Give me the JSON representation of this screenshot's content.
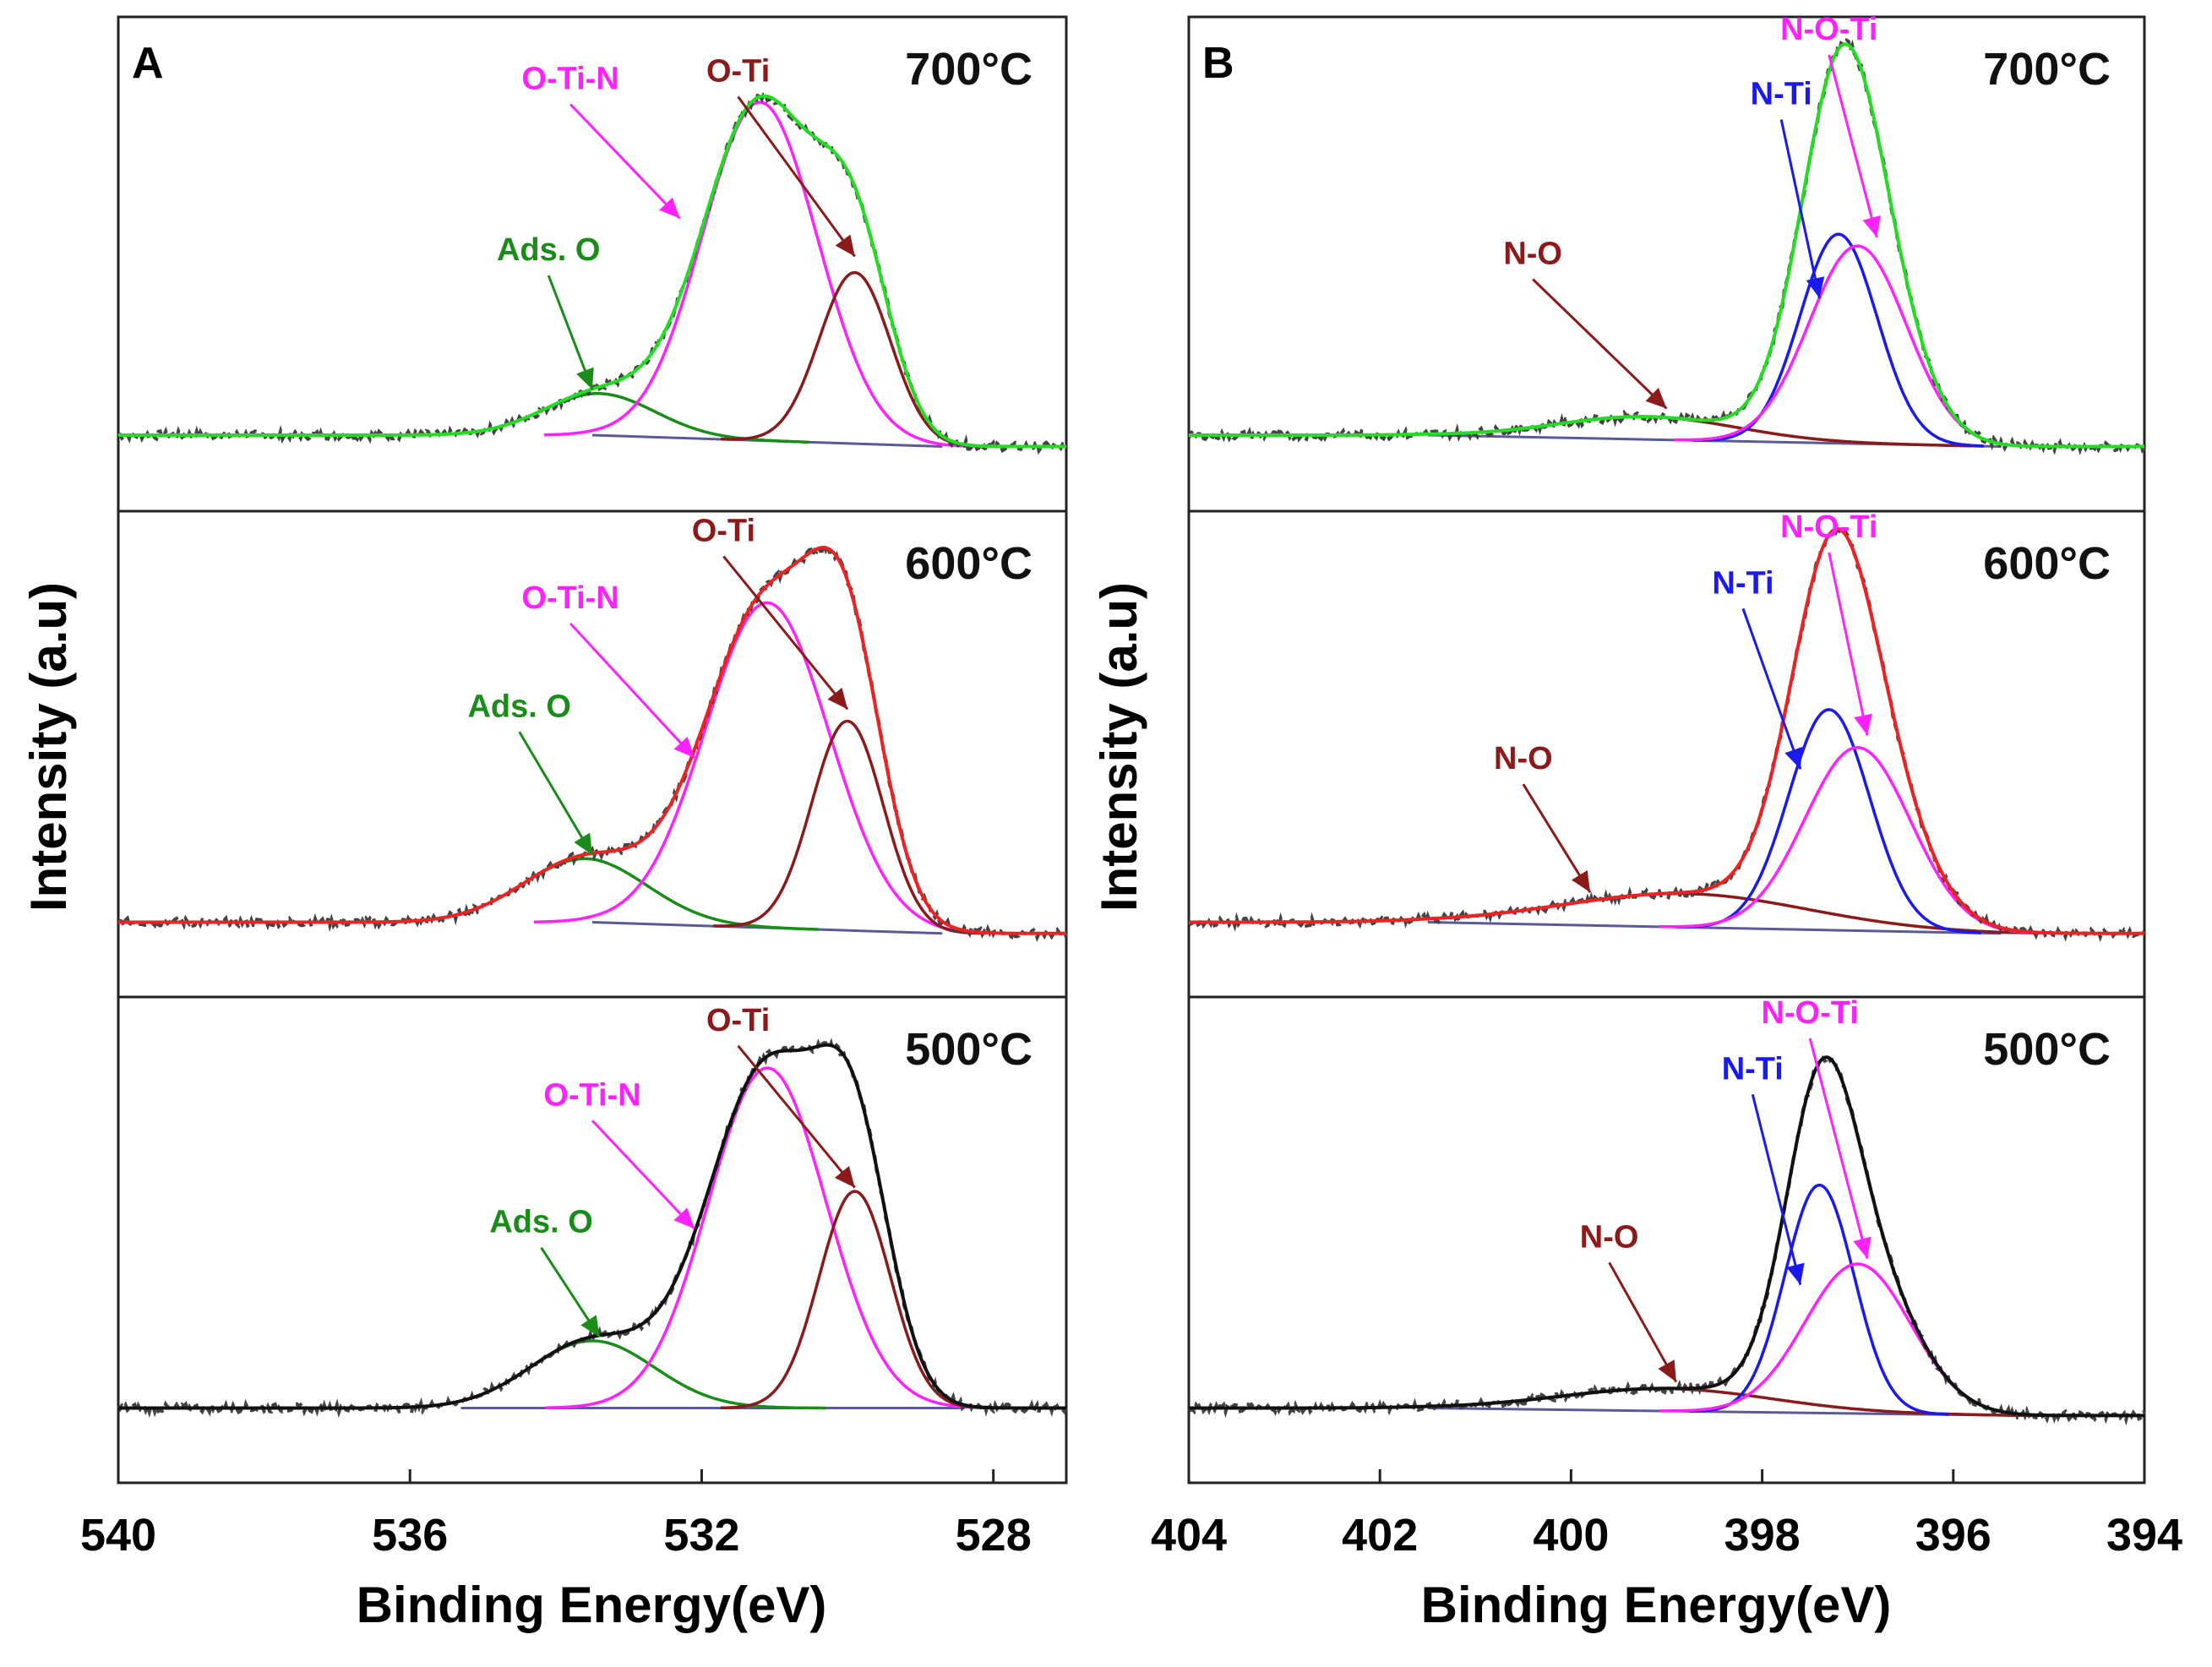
{
  "figure": {
    "xlabel": "Binding Energy(eV)",
    "ylabel": "Intensity (a.u)"
  },
  "chart_data": [
    {
      "panel": "A",
      "type": "line",
      "xlabel": "Binding Energy(eV)",
      "ylabel": "Intensity (a.u)",
      "xlim": [
        540,
        527
      ],
      "x_reversed": true,
      "xticks": [
        540,
        536,
        532,
        528
      ],
      "xtick_labels": [
        "540",
        "536",
        "532",
        "528"
      ],
      "series_legend": {
        "measured": "dotted dark gray",
        "background": "slate"
      },
      "subplots": [
        {
          "temp_label": "700°C",
          "envelope_color": "#22dd22",
          "ylim": [
            -0.2,
            1.1
          ],
          "baseline": {
            "left_x": 533.5,
            "right_x": 528.7,
            "left_y": 0.0,
            "right_y": -0.03
          },
          "components": [
            {
              "name": "Ads. O",
              "label": "Ads. O",
              "center": 533.4,
              "height": 0.11,
              "fwhm": 1.8,
              "color": "#1a8c1a",
              "label_x": 534.1,
              "label_y": 0.46,
              "arrow_x": 533.5,
              "arrow_y": 0.12
            },
            {
              "name": "O-Ti-N",
              "label": "O-Ti-N",
              "center": 531.2,
              "height": 0.89,
              "fwhm": 1.85,
              "color": "#ff22ff",
              "label_x": 533.8,
              "label_y": 0.91,
              "arrow_x": 532.3,
              "arrow_y": 0.57
            },
            {
              "name": "O-Ti",
              "label": "O-Ti",
              "center": 529.9,
              "height": 0.45,
              "fwhm": 1.15,
              "color": "#8b1a1a",
              "label_x": 531.5,
              "label_y": 0.93,
              "arrow_x": 529.9,
              "arrow_y": 0.47
            }
          ]
        },
        {
          "temp_label": "600°C",
          "envelope_color": "#ee2222",
          "ylim": [
            -0.2,
            1.1
          ],
          "baseline": {
            "left_x": 533.5,
            "right_x": 528.7,
            "left_y": 0.0,
            "right_y": -0.03
          },
          "components": [
            {
              "name": "Ads. O",
              "label": "Ads. O",
              "center": 533.6,
              "height": 0.17,
              "fwhm": 2.0,
              "color": "#1a8c1a",
              "label_x": 534.5,
              "label_y": 0.55,
              "arrow_x": 533.5,
              "arrow_y": 0.18
            },
            {
              "name": "O-Ti-N",
              "label": "O-Ti-N",
              "center": 531.1,
              "height": 0.87,
              "fwhm": 2.0,
              "color": "#ff22ff",
              "label_x": 533.8,
              "label_y": 0.84,
              "arrow_x": 532.1,
              "arrow_y": 0.44
            },
            {
              "name": "O-Ti",
              "label": "O-Ti",
              "center": 530.0,
              "height": 0.56,
              "fwhm": 1.15,
              "color": "#8b1a1a",
              "label_x": 531.7,
              "label_y": 1.02,
              "arrow_x": 530.0,
              "arrow_y": 0.57
            }
          ]
        },
        {
          "temp_label": "500°C",
          "envelope_color": "#111111",
          "ylim": [
            -0.2,
            1.1
          ],
          "baseline": {
            "left_x": 535.3,
            "right_x": 528.4,
            "left_y": 0.0,
            "right_y": 0.0
          },
          "components": [
            {
              "name": "Ads. O",
              "label": "Ads. O",
              "center": 533.5,
              "height": 0.18,
              "fwhm": 2.0,
              "color": "#1a8c1a",
              "label_x": 534.2,
              "label_y": 0.47,
              "arrow_x": 533.4,
              "arrow_y": 0.19
            },
            {
              "name": "O-Ti-N",
              "label": "O-Ti-N",
              "center": 531.1,
              "height": 0.91,
              "fwhm": 1.9,
              "color": "#ff22ff",
              "label_x": 533.5,
              "label_y": 0.81,
              "arrow_x": 532.1,
              "arrow_y": 0.48
            },
            {
              "name": "O-Ti",
              "label": "O-Ti",
              "center": 529.9,
              "height": 0.58,
              "fwhm": 1.15,
              "color": "#8b1a1a",
              "label_x": 531.5,
              "label_y": 1.01,
              "arrow_x": 529.9,
              "arrow_y": 0.59
            }
          ]
        }
      ]
    },
    {
      "panel": "B",
      "type": "line",
      "xlabel": "Binding Energy(eV)",
      "ylabel": "Intensity (a.u)",
      "xlim": [
        404,
        394
      ],
      "x_reversed": true,
      "xticks": [
        404,
        402,
        400,
        398,
        396,
        394
      ],
      "xtick_labels": [
        "404",
        "402",
        "400",
        "398",
        "396",
        "394"
      ],
      "subplots": [
        {
          "temp_label": "700°C",
          "envelope_color": "#22dd22",
          "ylim": [
            -0.2,
            1.1
          ],
          "baseline": {
            "left_x": 401.5,
            "right_x": 395.5,
            "left_y": 0.0,
            "right_y": -0.03
          },
          "components": [
            {
              "name": "N-O",
              "label": "N-O",
              "center": 399.2,
              "height": 0.06,
              "fwhm": 2.2,
              "color": "#8b1a1a",
              "label_x": 400.4,
              "label_y": 0.45,
              "arrow_x": 399.0,
              "arrow_y": 0.07
            },
            {
              "name": "N-Ti",
              "label": "N-Ti",
              "center": 397.2,
              "height": 0.55,
              "fwhm": 0.95,
              "color": "#1a1aee",
              "label_x": 397.8,
              "label_y": 0.87,
              "arrow_x": 397.4,
              "arrow_y": 0.36
            },
            {
              "name": "N-O-Ti",
              "label": "N-O-Ti",
              "center": 397.0,
              "height": 0.52,
              "fwhm": 1.2,
              "color": "#ff22ff",
              "label_x": 397.3,
              "label_y": 1.04,
              "arrow_x": 396.8,
              "arrow_y": 0.52
            }
          ]
        },
        {
          "temp_label": "600°C",
          "envelope_color": "#ee2222",
          "ylim": [
            -0.2,
            1.1
          ],
          "baseline": {
            "left_x": 401.5,
            "right_x": 395.5,
            "left_y": 0.0,
            "right_y": -0.03
          },
          "components": [
            {
              "name": "N-O",
              "label": "N-O",
              "center": 398.8,
              "height": 0.09,
              "fwhm": 3.0,
              "color": "#8b1a1a",
              "label_x": 400.5,
              "label_y": 0.41,
              "arrow_x": 399.8,
              "arrow_y": 0.08
            },
            {
              "name": "N-Ti",
              "label": "N-Ti",
              "center": 397.3,
              "height": 0.59,
              "fwhm": 1.0,
              "color": "#1a1aee",
              "label_x": 398.2,
              "label_y": 0.88,
              "arrow_x": 397.6,
              "arrow_y": 0.41
            },
            {
              "name": "N-O-Ti",
              "label": "N-O-Ti",
              "center": 397.0,
              "height": 0.49,
              "fwhm": 1.3,
              "color": "#ff22ff",
              "label_x": 397.3,
              "label_y": 1.03,
              "arrow_x": 396.9,
              "arrow_y": 0.5
            }
          ]
        },
        {
          "temp_label": "500°C",
          "envelope_color": "#111111",
          "ylim": [
            -0.2,
            1.1
          ],
          "baseline": {
            "left_x": 401.5,
            "right_x": 395.3,
            "left_y": 0.0,
            "right_y": -0.02
          },
          "components": [
            {
              "name": "N-O",
              "label": "N-O",
              "center": 399.0,
              "height": 0.06,
              "fwhm": 2.6,
              "color": "#8b1a1a",
              "label_x": 399.6,
              "label_y": 0.43,
              "arrow_x": 398.9,
              "arrow_y": 0.07
            },
            {
              "name": "N-Ti",
              "label": "N-Ti",
              "center": 397.4,
              "height": 0.61,
              "fwhm": 0.85,
              "color": "#1a1aee",
              "label_x": 398.1,
              "label_y": 0.88,
              "arrow_x": 397.6,
              "arrow_y": 0.33
            },
            {
              "name": "N-O-Ti",
              "label": "N-O-Ti",
              "center": 397.0,
              "height": 0.4,
              "fwhm": 1.3,
              "color": "#ff22ff",
              "label_x": 397.5,
              "label_y": 1.03,
              "arrow_x": 396.9,
              "arrow_y": 0.4
            }
          ]
        }
      ]
    }
  ],
  "colors": {
    "measured": "#444444",
    "background": "#5a5a9a",
    "axis": "#222222"
  }
}
